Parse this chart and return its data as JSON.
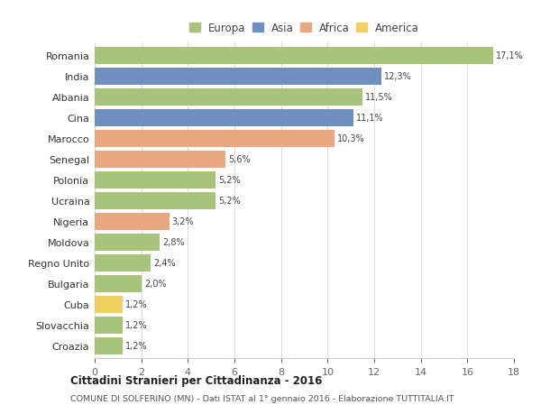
{
  "countries": [
    "Romania",
    "India",
    "Albania",
    "Cina",
    "Marocco",
    "Senegal",
    "Polonia",
    "Ucraina",
    "Nigeria",
    "Moldova",
    "Regno Unito",
    "Bulgaria",
    "Cuba",
    "Slovacchia",
    "Croazia"
  ],
  "values": [
    17.1,
    12.3,
    11.5,
    11.1,
    10.3,
    5.6,
    5.2,
    5.2,
    3.2,
    2.8,
    2.4,
    2.0,
    1.2,
    1.2,
    1.2
  ],
  "labels": [
    "17,1%",
    "12,3%",
    "11,5%",
    "11,1%",
    "10,3%",
    "5,6%",
    "5,2%",
    "5,2%",
    "3,2%",
    "2,8%",
    "2,4%",
    "2,0%",
    "1,2%",
    "1,2%",
    "1,2%"
  ],
  "continents": [
    "Europa",
    "Asia",
    "Europa",
    "Asia",
    "Africa",
    "Africa",
    "Europa",
    "Europa",
    "Africa",
    "Europa",
    "Europa",
    "Europa",
    "America",
    "Europa",
    "Europa"
  ],
  "colors": {
    "Europa": "#a8c47a",
    "Asia": "#6f8fbf",
    "Africa": "#e8a882",
    "America": "#f0d060"
  },
  "legend_labels": [
    "Europa",
    "Asia",
    "Africa",
    "America"
  ],
  "legend_colors": [
    "#a8c47a",
    "#6f8fbf",
    "#e8a882",
    "#f0d060"
  ],
  "title": "Cittadini Stranieri per Cittadinanza - 2016",
  "subtitle": "COMUNE DI SOLFERINO (MN) - Dati ISTAT al 1° gennaio 2016 - Elaborazione TUTTITALIA.IT",
  "xlim": [
    0,
    18
  ],
  "xticks": [
    0,
    2,
    4,
    6,
    8,
    10,
    12,
    14,
    16,
    18
  ],
  "background_color": "#ffffff",
  "grid_color": "#dddddd",
  "bar_height": 0.82
}
